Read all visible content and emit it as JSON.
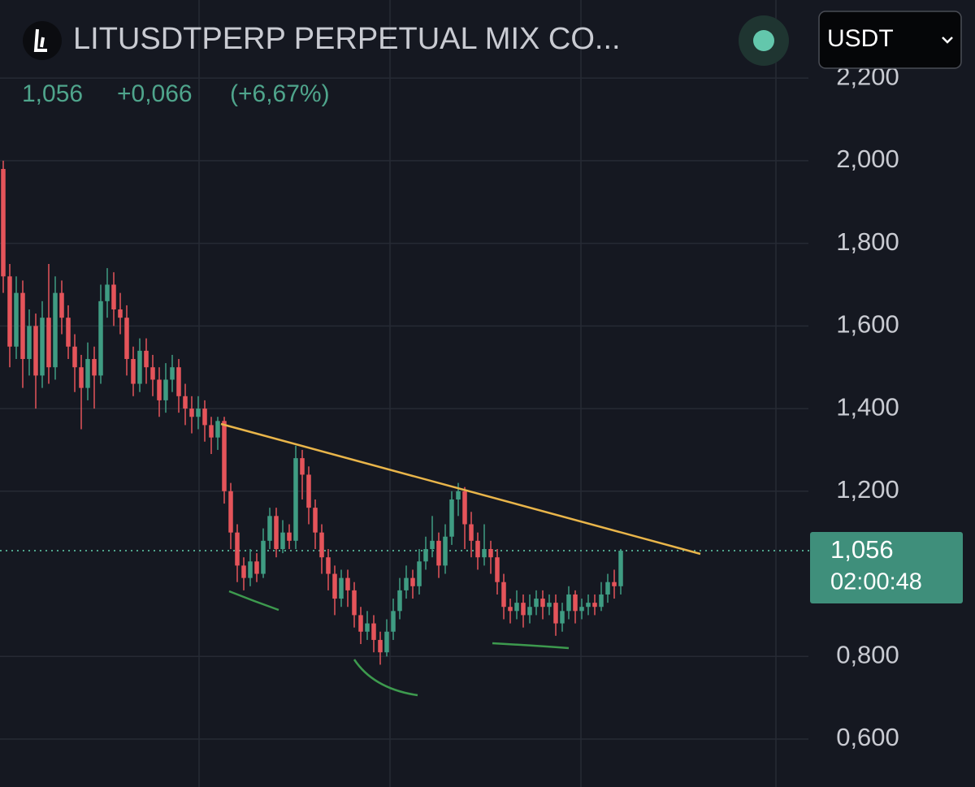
{
  "header": {
    "title": "LITUSDTPERP PERPETUAL MIX CO...",
    "currency": "USDT",
    "price": "1,056",
    "change": "+0,066",
    "change_pct": "(+6,67%)"
  },
  "chart_data": {
    "type": "candlestick",
    "up_color": "#3f9c83",
    "down_color": "#e5545a",
    "open": [
      1.98,
      1.72,
      1.55,
      1.68,
      1.52,
      1.6,
      1.48,
      1.62,
      1.5,
      1.68,
      1.62,
      1.55,
      1.5,
      1.45,
      1.52,
      1.48,
      1.66,
      1.7,
      1.64,
      1.62,
      1.52,
      1.46,
      1.54,
      1.5,
      1.47,
      1.42,
      1.47,
      1.5,
      1.43,
      1.4,
      1.38,
      1.4,
      1.36,
      1.33,
      1.37,
      1.2,
      1.1,
      1.02,
      0.99,
      1.03,
      1.0,
      1.08,
      1.14,
      1.06,
      1.1,
      1.08,
      1.28,
      1.24,
      1.16,
      1.1,
      1.04,
      1.0,
      0.94,
      0.99,
      0.96,
      0.9,
      0.86,
      0.88,
      0.84,
      0.81,
      0.86,
      0.91,
      0.96,
      0.99,
      0.97,
      1.03,
      1.06,
      1.08,
      1.02,
      1.09,
      1.18,
      1.2,
      1.12,
      1.08,
      1.04,
      1.06,
      1.04,
      0.98,
      0.92,
      0.91,
      0.93,
      0.9,
      0.92,
      0.94,
      0.92,
      0.93,
      0.88,
      0.91,
      0.95,
      0.91,
      0.92,
      0.93,
      0.92,
      0.95,
      0.98,
      0.97
    ],
    "high": [
      2.0,
      1.75,
      1.72,
      1.71,
      1.64,
      1.63,
      1.66,
      1.75,
      1.72,
      1.71,
      1.65,
      1.58,
      1.53,
      1.56,
      1.55,
      1.7,
      1.74,
      1.73,
      1.68,
      1.65,
      1.55,
      1.57,
      1.57,
      1.53,
      1.5,
      1.51,
      1.53,
      1.52,
      1.46,
      1.43,
      1.43,
      1.42,
      1.38,
      1.38,
      1.38,
      1.22,
      1.12,
      1.04,
      1.06,
      1.05,
      1.11,
      1.16,
      1.16,
      1.13,
      1.12,
      1.31,
      1.3,
      1.26,
      1.18,
      1.12,
      1.06,
      1.02,
      1.01,
      1.01,
      0.98,
      0.92,
      0.91,
      0.9,
      0.86,
      0.89,
      0.94,
      0.99,
      1.02,
      1.01,
      1.06,
      1.09,
      1.14,
      1.1,
      1.12,
      1.2,
      1.22,
      1.21,
      1.15,
      1.1,
      1.12,
      1.08,
      1.06,
      1.0,
      0.94,
      0.96,
      0.95,
      0.95,
      0.96,
      0.96,
      0.95,
      0.95,
      0.93,
      0.97,
      0.96,
      0.94,
      0.95,
      0.95,
      0.98,
      1.0,
      1.01,
      1.06
    ],
    "low": [
      1.68,
      1.5,
      1.52,
      1.45,
      1.48,
      1.4,
      1.45,
      1.46,
      1.47,
      1.58,
      1.52,
      1.44,
      1.35,
      1.42,
      1.4,
      1.46,
      1.62,
      1.6,
      1.58,
      1.48,
      1.43,
      1.44,
      1.46,
      1.43,
      1.38,
      1.39,
      1.44,
      1.39,
      1.36,
      1.34,
      1.35,
      1.32,
      1.29,
      1.3,
      1.17,
      1.06,
      0.98,
      0.96,
      0.97,
      0.98,
      0.99,
      1.06,
      1.04,
      1.05,
      1.06,
      1.06,
      1.18,
      1.12,
      1.06,
      1.0,
      0.96,
      0.9,
      0.92,
      0.92,
      0.87,
      0.83,
      0.84,
      0.81,
      0.78,
      0.8,
      0.84,
      0.89,
      0.94,
      0.94,
      0.95,
      1.01,
      1.04,
      0.99,
      1.0,
      1.07,
      1.14,
      1.06,
      1.04,
      1.01,
      1.02,
      1.0,
      0.95,
      0.89,
      0.88,
      0.89,
      0.87,
      0.88,
      0.9,
      0.89,
      0.9,
      0.85,
      0.86,
      0.89,
      0.88,
      0.89,
      0.9,
      0.9,
      0.91,
      0.93,
      0.94,
      0.95
    ],
    "close": [
      1.72,
      1.55,
      1.68,
      1.52,
      1.6,
      1.48,
      1.62,
      1.5,
      1.68,
      1.62,
      1.55,
      1.5,
      1.45,
      1.52,
      1.48,
      1.66,
      1.7,
      1.64,
      1.62,
      1.52,
      1.46,
      1.54,
      1.5,
      1.47,
      1.42,
      1.47,
      1.5,
      1.43,
      1.4,
      1.38,
      1.4,
      1.36,
      1.33,
      1.37,
      1.2,
      1.1,
      1.02,
      0.99,
      1.03,
      1.0,
      1.08,
      1.14,
      1.06,
      1.1,
      1.08,
      1.28,
      1.24,
      1.16,
      1.1,
      1.04,
      1.0,
      0.94,
      0.99,
      0.96,
      0.9,
      0.86,
      0.88,
      0.84,
      0.81,
      0.86,
      0.91,
      0.96,
      0.99,
      0.97,
      1.03,
      1.06,
      1.08,
      1.02,
      1.09,
      1.18,
      1.2,
      1.12,
      1.08,
      1.04,
      1.06,
      1.04,
      0.98,
      0.92,
      0.91,
      0.93,
      0.9,
      0.92,
      0.94,
      0.92,
      0.93,
      0.88,
      0.91,
      0.95,
      0.91,
      0.92,
      0.93,
      0.92,
      0.95,
      0.98,
      0.97,
      1.056
    ],
    "ylim": [
      0.484,
      2.389
    ],
    "yticks": [
      {
        "value": 0.6,
        "label": "0,600"
      },
      {
        "value": 0.8,
        "label": "0,800"
      },
      {
        "value": 1.2,
        "label": "1,200"
      },
      {
        "value": 1.4,
        "label": "1,400"
      },
      {
        "value": 1.6,
        "label": "1,600"
      },
      {
        "value": 1.8,
        "label": "1,800"
      },
      {
        "value": 2.0,
        "label": "2,000"
      },
      {
        "value": 2.2,
        "label": "2,200"
      }
    ],
    "grid": true,
    "last_price": {
      "value": 1.056,
      "label": "1,056"
    },
    "countdown": "02:00:48"
  }
}
